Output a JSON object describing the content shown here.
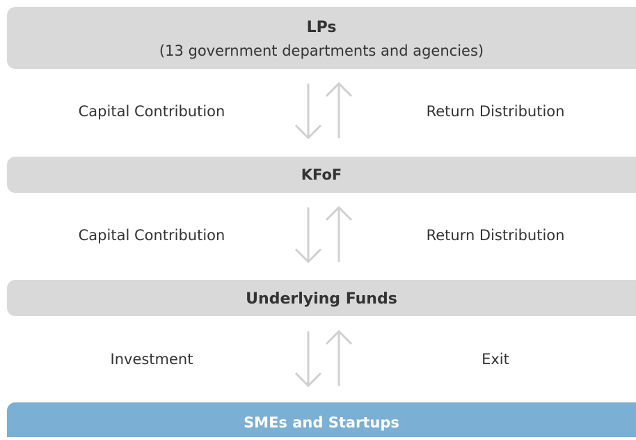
{
  "boxes": [
    {
      "title": "LPs",
      "subtitle": "(13 government departments and agencies)"
    },
    {
      "title": "KFoF"
    },
    {
      "title": "Underlying Funds"
    },
    {
      "title": "SMEs and Startups"
    }
  ],
  "flows": [
    {
      "down": "Capital Contribution",
      "up": "Return Distribution"
    },
    {
      "down": "Capital Contribution",
      "up": "Return Distribution"
    },
    {
      "down": "Investment",
      "up": "Exit"
    }
  ]
}
